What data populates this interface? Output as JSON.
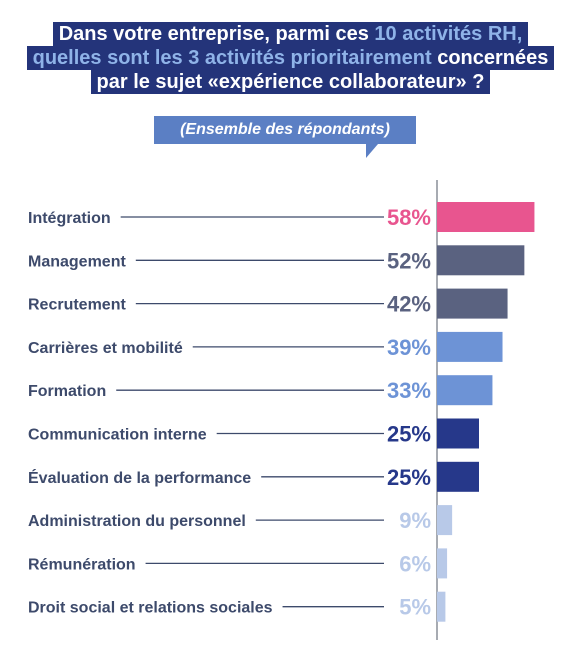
{
  "title": {
    "line1_a": "Dans votre entreprise, parmi ces ",
    "line1_hl": "10 activités RH,",
    "line2_hl": "quelles sont les 3 activités prioritairement",
    "line2_b": " concernées",
    "line3": "par le sujet «expérience collaborateur» ?"
  },
  "subtitle": "(Ensemble des répondants)",
  "colors": {
    "title_bg": "#24347a",
    "title_highlight": "#8fb3e8",
    "subtitle_bg": "#5b7fc4"
  },
  "chart_data": {
    "type": "bar",
    "orientation": "horizontal",
    "categories": [
      "Intégration",
      "Management",
      "Recrutement",
      "Carrières et mobilité",
      "Formation",
      "Communication interne",
      "Évaluation de la performance",
      "Administration du personnel",
      "Rémunération",
      "Droit social et relations sociales"
    ],
    "values": [
      58,
      52,
      42,
      39,
      33,
      25,
      25,
      9,
      6,
      5
    ],
    "value_labels": [
      "58%",
      "52%",
      "42%",
      "39%",
      "33%",
      "25%",
      "25%",
      "9%",
      "6%",
      "5%"
    ],
    "unit": "%",
    "colors": [
      "#e8558f",
      "#5a6280",
      "#5a6280",
      "#6d93d6",
      "#6d93d6",
      "#26388a",
      "#26388a",
      "#b8c9e8",
      "#b8c9e8",
      "#b8c9e8"
    ],
    "grid": false,
    "legend": "none"
  }
}
